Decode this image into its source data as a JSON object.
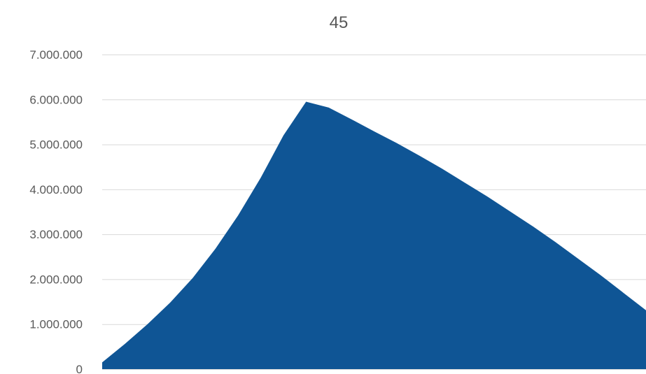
{
  "chart_data": {
    "type": "area",
    "title": "45",
    "xlabel": "",
    "ylabel": "",
    "x": [
      0,
      1,
      2,
      3,
      4,
      5,
      6,
      7,
      8,
      9,
      10,
      11,
      12,
      13,
      14,
      15,
      16,
      17,
      18,
      19,
      20,
      21,
      22,
      23,
      24,
      25,
      26,
      27
    ],
    "series": [
      {
        "values": [
          150000,
          560000,
          1000000,
          1480000,
          2030000,
          2680000,
          3420000,
          4260000,
          5200000,
          5950000,
          5820000,
          5560000,
          5290000,
          5030000,
          4750000,
          4460000,
          4150000,
          3840000,
          3510000,
          3180000,
          2830000,
          2460000,
          2090000,
          1700000,
          1310000,
          910000,
          500000,
          100000
        ]
      }
    ],
    "ylim": [
      0,
      7000000
    ],
    "yticks": [
      "0",
      "1.000.000",
      "2.000.000",
      "3.000.000",
      "4.000.000",
      "5.000.000",
      "6.000.000",
      "7.000.000"
    ],
    "grid": true,
    "colors": {
      "area_fill": "#0f5595",
      "grid": "#d9d9d9",
      "text": "#595959"
    }
  }
}
